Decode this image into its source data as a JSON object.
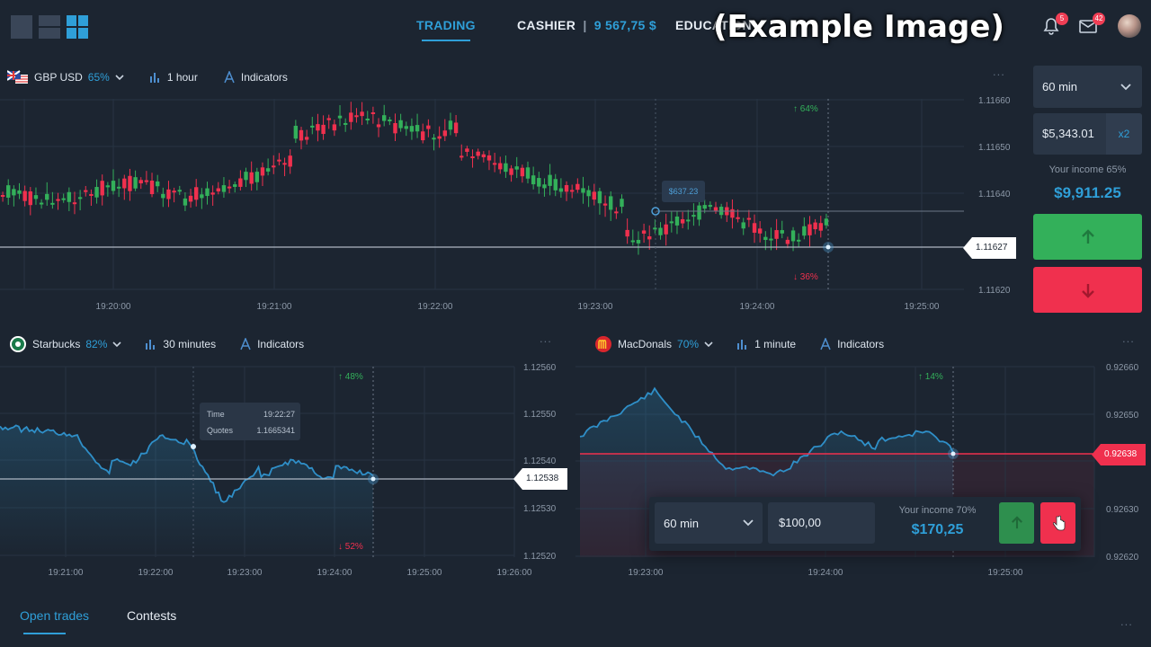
{
  "watermark": "(Example Image)",
  "header": {
    "nav": {
      "trading": "TRADING",
      "cashier": "CASHIER",
      "cashier_sep": "|",
      "balance": "9 567,75 $",
      "education": "EDUCATION"
    },
    "notifications_count": "5",
    "messages_count": "42"
  },
  "main_chart": {
    "asset": "GBP USD",
    "asset_pct": "65%",
    "timeframe": "1 hour",
    "indicators": "Indicators",
    "more": "...",
    "price_tag": "1.11627",
    "tooltip_value": "$637.23",
    "up_pct": "↑ 64%",
    "down_pct": "↓ 36%",
    "y_ticks": [
      "1.11660",
      "1.11650",
      "1.11640",
      "1.11620"
    ],
    "x_ticks": [
      "19:20:00",
      "19:21:00",
      "19:22:00",
      "19:23:00",
      "19:24:00",
      "19:25:00"
    ]
  },
  "side_panel": {
    "duration": "60 min",
    "amount": "$5,343.01",
    "multiplier": "x2",
    "income_label": "Your income 65%",
    "income_value": "$9,911.25"
  },
  "chart_left": {
    "asset": "Starbucks",
    "asset_pct": "82%",
    "timeframe": "30 minutes",
    "indicators": "Indicators",
    "more": "...",
    "price_tag": "1.12538",
    "tooltip_time_label": "Time",
    "tooltip_time_value": "19:22:27",
    "tooltip_quotes_label": "Quotes",
    "tooltip_quotes_value": "1.1665341",
    "up_pct": "↑ 48%",
    "down_pct": "↓ 52%",
    "y_ticks": [
      "1.12560",
      "1.12550",
      "1.12540",
      "1.12530",
      "1.12520"
    ],
    "x_ticks": [
      "19:21:00",
      "19:22:00",
      "19:23:00",
      "19:24:00",
      "19:25:00",
      "19:26:00"
    ]
  },
  "chart_right": {
    "asset": "MacDonals",
    "asset_pct": "70%",
    "timeframe": "1 minute",
    "indicators": "Indicators",
    "more": "...",
    "price_tag": "0.92638",
    "up_pct": "↑ 14%",
    "y_ticks": [
      "0.92660",
      "0.92650",
      "0.92640",
      "0.92630",
      "0.92620"
    ],
    "x_ticks": [
      "19:23:00",
      "19:24:00",
      "19:25:00"
    ]
  },
  "trade_box": {
    "duration": "60 min",
    "amount": "$100,00",
    "income_label": "Your income 70%",
    "income_value": "$170,25"
  },
  "bottom_tabs": {
    "open_trades": "Open trades",
    "contests": "Contests",
    "more": "..."
  },
  "colors": {
    "accent": "#2f9fd8",
    "up": "#33b05a",
    "down": "#f0304e",
    "background": "#1c2531"
  }
}
